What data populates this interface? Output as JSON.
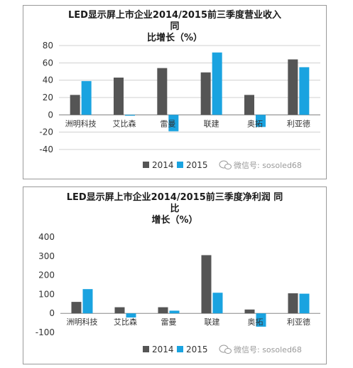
{
  "colors": {
    "s2014": "#555555",
    "s2015": "#1aa3e0",
    "grid": "#d0d0d0",
    "axis": "#888888"
  },
  "watermark": "微信号: sosoled68",
  "watermark_icon": "wechat-icon",
  "chart_data": [
    {
      "type": "bar",
      "title_line1": "LED显示屏上市企业2014/2015前三季度营业收入 同",
      "title_line2": "比增长（%）",
      "categories": [
        "洲明科技",
        "艾比森",
        "雷曼",
        "联建",
        "奥拓",
        "利亚德"
      ],
      "series": [
        {
          "name": "2014",
          "values": [
            23,
            43,
            54,
            49,
            23,
            64
          ]
        },
        {
          "name": "2015",
          "values": [
            39,
            -1,
            -19,
            72,
            -14,
            55
          ]
        }
      ],
      "ylim": [
        -40,
        80
      ],
      "yticks": [
        "80",
        "60",
        "40",
        "20",
        "0",
        "-20",
        "-40"
      ],
      "ytick_values": [
        80,
        60,
        40,
        20,
        0,
        -20,
        -40
      ],
      "grid": true,
      "legend": "bottom-right"
    },
    {
      "type": "bar",
      "title_line1": "LED显示屏上市企业2014/2015前三季度净利润 同比",
      "title_line2": "增长（%）",
      "categories": [
        "洲明科技",
        "艾比森",
        "雷曼",
        "联建",
        "奥拓",
        "利亚德"
      ],
      "series": [
        {
          "name": "2014",
          "values": [
            60,
            32,
            32,
            305,
            20,
            105
          ]
        },
        {
          "name": "2015",
          "values": [
            127,
            -22,
            14,
            108,
            -70,
            103
          ]
        }
      ],
      "ylim": [
        -100,
        400
      ],
      "yticks": [
        "400",
        "300",
        "200",
        "100",
        "0",
        "-100"
      ],
      "ytick_values": [
        400,
        300,
        200,
        100,
        0,
        -100
      ],
      "grid": false,
      "legend": "bottom-right"
    }
  ]
}
